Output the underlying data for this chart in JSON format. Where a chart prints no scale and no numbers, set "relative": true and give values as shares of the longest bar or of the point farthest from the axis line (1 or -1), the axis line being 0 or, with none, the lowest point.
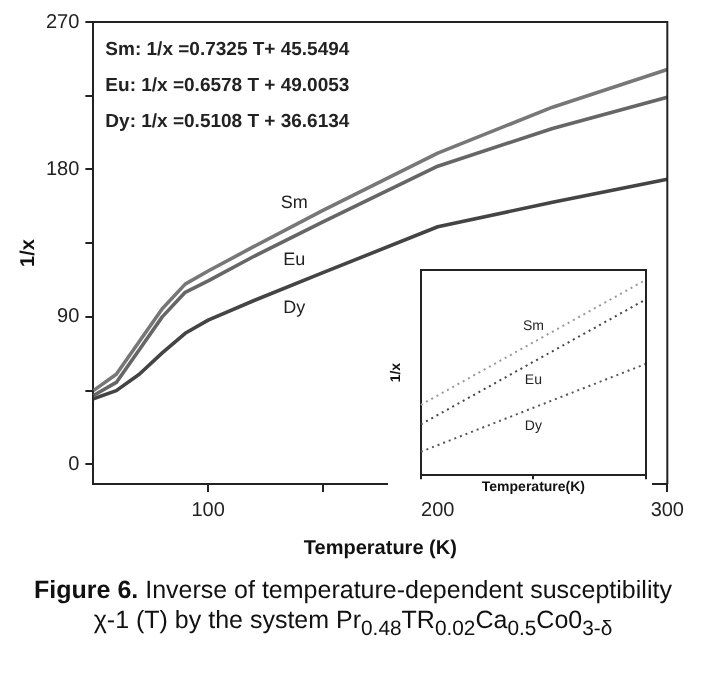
{
  "chart_data": [
    {
      "type": "line",
      "title": "Figure 6. Inverse of temperature-dependent susceptibility χ-1 (T) by the system Pr$_{0.48}$TR$_{0.02}$Ca$_{0.5}$Co0$_{3-δ}$",
      "xlabel": "Temperature (K)",
      "ylabel": "1/x",
      "x": [
        50,
        60,
        70,
        80,
        90,
        100,
        120,
        150,
        200,
        250,
        300
      ],
      "series": [
        {
          "name": "Sm",
          "color": "#777777",
          "values": [
            45,
            55,
            75,
            95,
            110,
            118,
            133,
            155,
            190,
            218,
            241
          ]
        },
        {
          "name": "Eu",
          "color": "#666666",
          "values": [
            42,
            50,
            70,
            90,
            105,
            112,
            127,
            148,
            182,
            205,
            224
          ]
        },
        {
          "name": "Dy",
          "color": "#444444",
          "values": [
            40,
            45,
            55,
            68,
            80,
            88,
            100,
            117,
            145,
            160,
            174
          ]
        }
      ],
      "xlim": [
        50,
        300
      ],
      "ylim": [
        -12,
        270
      ],
      "xticks": [
        100,
        {
          "value": 150,
          "label": null
        },
        200,
        {
          "value": 250,
          "label": null
        },
        300
      ],
      "yticks": [
        0,
        {
          "value": 45,
          "label": null
        },
        90,
        {
          "value": 135,
          "label": null
        },
        180,
        {
          "value": 225,
          "label": null
        },
        270
      ],
      "grid": false,
      "legend": false,
      "annotations": [
        "Sm: 1/x =0.7325 T+ 45.5494",
        "Eu: 1/x =0.6578 T + 49.0053",
        "Dy: 1/x =0.5108 T + 36.6134"
      ]
    },
    {
      "type": "line",
      "xlabel": "Temperature(K)",
      "ylabel": "1/x",
      "relative": true,
      "tick_labels": false,
      "line_style": "dotted",
      "legend": false,
      "categories": [
        null,
        null,
        null
      ],
      "series": [
        {
          "name": "Sm",
          "color": "#999999",
          "values": [
            0.36,
            0.68,
            1
          ]
        },
        {
          "name": "Eu",
          "color": "#444444",
          "values": [
            0.26,
            0.58,
            0.9
          ]
        },
        {
          "name": "Dy",
          "color": "#555555",
          "values": [
            0.12,
            0.345,
            0.57
          ]
        }
      ]
    }
  ]
}
